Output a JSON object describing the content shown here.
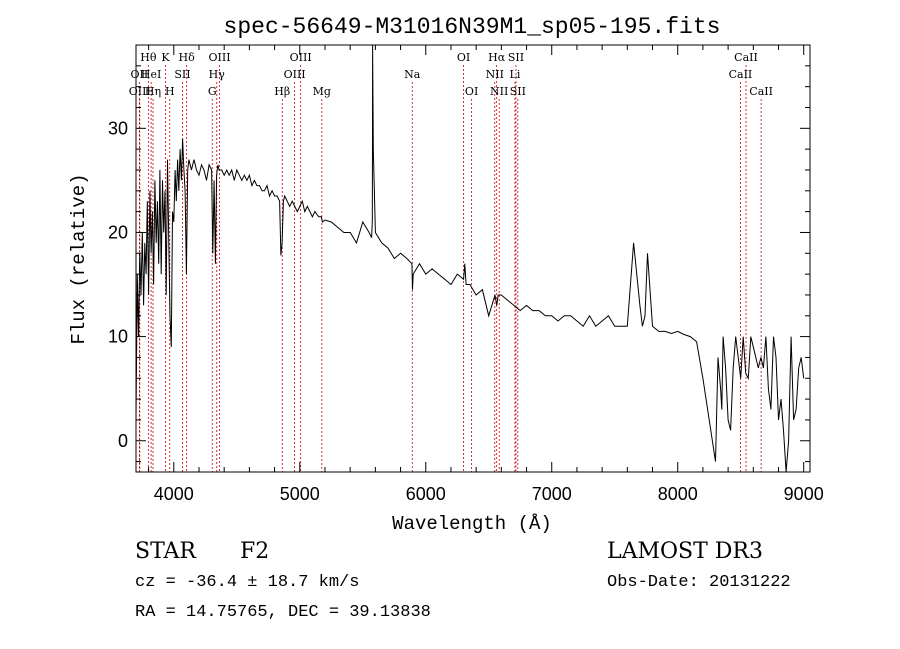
{
  "chart_data": {
    "type": "line",
    "title": "spec-56649-M31016N39M1_sp05-195.fits",
    "xlabel": "Wavelength (Å)",
    "ylabel": "Flux (relative)",
    "xlim": [
      3700,
      9050
    ],
    "ylim": [
      -3,
      38
    ],
    "xticks": [
      4000,
      5000,
      6000,
      7000,
      8000,
      9000
    ],
    "yticks": [
      0,
      10,
      20,
      30
    ],
    "grid": false,
    "lines": [
      {
        "label": "Hθ",
        "wl": 3798,
        "row": 0
      },
      {
        "label": "OII",
        "wl": 3727,
        "row": 1
      },
      {
        "label": "OIII",
        "wl": 3730,
        "row": 2
      },
      {
        "label": "HeI",
        "wl": 3820,
        "row": 1
      },
      {
        "label": "Hη",
        "wl": 3835,
        "row": 2
      },
      {
        "label": "K",
        "wl": 3934,
        "row": 0
      },
      {
        "label": "H",
        "wl": 3968,
        "row": 2
      },
      {
        "label": "SII",
        "wl": 4069,
        "row": 1
      },
      {
        "label": "Hδ",
        "wl": 4102,
        "row": 0
      },
      {
        "label": "OIII",
        "wl": 4363,
        "row": 0
      },
      {
        "label": "Hγ",
        "wl": 4341,
        "row": 1
      },
      {
        "label": "G",
        "wl": 4305,
        "row": 2
      },
      {
        "label": "Hβ",
        "wl": 4861,
        "row": 2
      },
      {
        "label": "OIII",
        "wl": 5007,
        "row": 0
      },
      {
        "label": "OIII",
        "wl": 4959,
        "row": 1
      },
      {
        "label": "Mg",
        "wl": 5175,
        "row": 2
      },
      {
        "label": "Na",
        "wl": 5893,
        "row": 1
      },
      {
        "label": "OI",
        "wl": 6300,
        "row": 0
      },
      {
        "label": "OI",
        "wl": 6364,
        "row": 2
      },
      {
        "label": "Hα",
        "wl": 6563,
        "row": 0
      },
      {
        "label": "NII",
        "wl": 6548,
        "row": 1
      },
      {
        "label": "NII",
        "wl": 6583,
        "row": 2
      },
      {
        "label": "SII",
        "wl": 6716,
        "row": 0
      },
      {
        "label": "Li",
        "wl": 6708,
        "row": 1
      },
      {
        "label": "SII",
        "wl": 6731,
        "row": 2
      },
      {
        "label": "CaII",
        "wl": 8542,
        "row": 0
      },
      {
        "label": "CaII",
        "wl": 8498,
        "row": 1
      },
      {
        "label": "CaII",
        "wl": 8662,
        "row": 2
      }
    ],
    "series": [
      {
        "name": "spectrum",
        "x": [
          3700,
          3710,
          3720,
          3730,
          3740,
          3750,
          3760,
          3770,
          3780,
          3790,
          3800,
          3810,
          3820,
          3830,
          3840,
          3850,
          3860,
          3870,
          3880,
          3890,
          3900,
          3910,
          3920,
          3930,
          3940,
          3950,
          3960,
          3970,
          3980,
          3990,
          4000,
          4010,
          4020,
          4030,
          4040,
          4050,
          4060,
          4070,
          4080,
          4090,
          4100,
          4110,
          4120,
          4140,
          4160,
          4180,
          4200,
          4220,
          4240,
          4260,
          4280,
          4300,
          4310,
          4320,
          4330,
          4340,
          4350,
          4360,
          4380,
          4400,
          4420,
          4440,
          4460,
          4480,
          4500,
          4520,
          4540,
          4560,
          4580,
          4600,
          4620,
          4640,
          4660,
          4680,
          4700,
          4720,
          4740,
          4760,
          4780,
          4800,
          4820,
          4840,
          4850,
          4860,
          4870,
          4880,
          4900,
          4920,
          4940,
          4960,
          4980,
          5000,
          5020,
          5040,
          5060,
          5080,
          5100,
          5120,
          5150,
          5170,
          5180,
          5200,
          5250,
          5300,
          5350,
          5400,
          5450,
          5500,
          5550,
          5570,
          5576,
          5577,
          5578,
          5584,
          5600,
          5650,
          5700,
          5750,
          5800,
          5850,
          5890,
          5895,
          5900,
          5950,
          6000,
          6050,
          6100,
          6150,
          6200,
          6250,
          6300,
          6310,
          6320,
          6350,
          6400,
          6450,
          6500,
          6550,
          6563,
          6575,
          6600,
          6650,
          6700,
          6750,
          6800,
          6850,
          6900,
          6950,
          7000,
          7050,
          7100,
          7150,
          7200,
          7250,
          7300,
          7350,
          7400,
          7450,
          7500,
          7550,
          7600,
          7650,
          7700,
          7720,
          7740,
          7760,
          7800,
          7850,
          7880,
          7900,
          7950,
          8000,
          8050,
          8100,
          8150,
          8200,
          8250,
          8300,
          8320,
          8340,
          8350,
          8360,
          8380,
          8400,
          8420,
          8440,
          8460,
          8480,
          8500,
          8520,
          8540,
          8560,
          8580,
          8600,
          8620,
          8640,
          8660,
          8680,
          8700,
          8720,
          8740,
          8760,
          8780,
          8800,
          8820,
          8840,
          8860,
          8880,
          8900,
          8920,
          8940,
          8960,
          8980,
          9000
        ],
        "y": [
          2,
          16,
          10,
          18,
          14,
          20,
          13,
          19,
          16,
          23,
          14,
          24,
          18,
          22,
          15,
          25,
          19,
          23,
          17,
          26,
          16,
          25,
          20,
          24,
          14,
          27,
          19,
          12,
          9,
          22,
          21,
          26,
          23,
          27,
          24,
          28,
          25,
          29,
          26,
          24,
          16,
          26,
          27,
          26,
          27,
          26,
          25.5,
          26.5,
          26,
          25,
          26.5,
          26,
          18,
          25,
          17,
          25.5,
          26.5,
          26,
          26,
          25.5,
          26,
          25.5,
          26,
          25,
          26,
          25.5,
          25,
          25.5,
          25,
          25.5,
          24.5,
          25,
          24.5,
          24.5,
          24,
          24,
          24.5,
          23.5,
          24,
          23.5,
          23.5,
          23,
          17.8,
          19,
          23,
          23.5,
          23,
          22.5,
          23,
          22.5,
          22,
          22.5,
          23,
          22,
          22.5,
          22,
          21.5,
          22,
          21.5,
          21.5,
          21,
          21.2,
          21,
          20.5,
          20,
          20,
          19,
          21,
          20,
          19.5,
          21,
          29,
          38,
          28,
          20,
          19,
          18.5,
          17.5,
          18,
          17.5,
          17,
          14.5,
          16,
          17,
          16,
          16.5,
          16,
          15.5,
          15,
          16,
          15.5,
          17,
          15,
          15,
          14,
          14.5,
          12,
          14,
          13,
          14,
          14,
          13.5,
          13,
          12.5,
          13,
          12.5,
          12.5,
          12,
          12,
          11.5,
          12,
          12,
          11.5,
          11,
          12,
          11,
          11.5,
          12,
          11,
          11,
          11,
          19,
          13,
          11,
          12,
          18,
          11,
          10.5,
          10.5,
          10.5,
          10.3,
          10.5,
          10.2,
          10,
          9.5,
          6,
          2,
          -2,
          8,
          5,
          3,
          10,
          7,
          2,
          1,
          7,
          10,
          8,
          6,
          10,
          6.5,
          6,
          10,
          9,
          8,
          7,
          8,
          7,
          10,
          5,
          3,
          10,
          8,
          2,
          4,
          1,
          -3,
          0,
          10,
          2,
          3,
          7,
          8,
          6
        ]
      }
    ]
  },
  "footer": {
    "object_class": "STAR",
    "subclass": "F2",
    "velocity": "cz = -36.4 ± 18.7 km/s",
    "coords": "RA =  14.75765, DEC =  39.13838",
    "survey": "LAMOST DR3",
    "obs_date": "Obs-Date: 20131222"
  }
}
